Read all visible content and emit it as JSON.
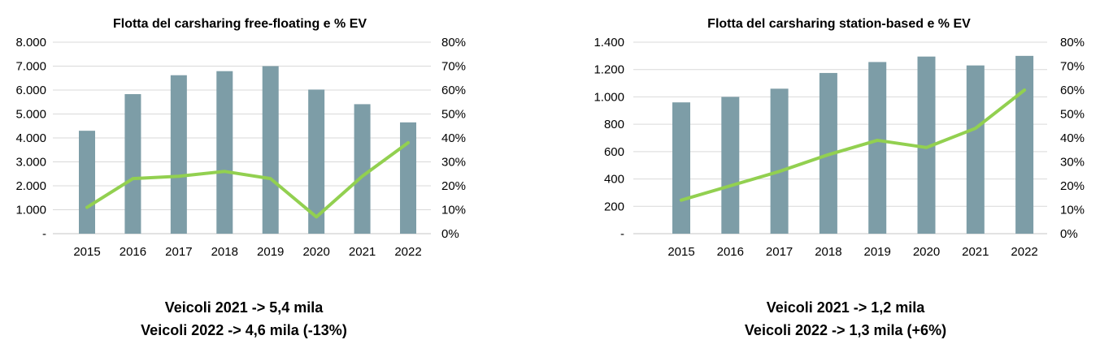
{
  "colors": {
    "bar": "#7D9DA7",
    "line": "#92D050",
    "grid": "#D9D9D9",
    "baseline": "#C6C6C6",
    "text": "#000000",
    "background": "#FFFFFF"
  },
  "chart_data": [
    {
      "type": "bar",
      "combo": "bar+line",
      "title": "Flotta del carsharing free-floating e % EV",
      "categories": [
        "2015",
        "2016",
        "2017",
        "2018",
        "2019",
        "2020",
        "2021",
        "2022"
      ],
      "series": [
        {
          "name": "Veicoli",
          "kind": "bar",
          "axis": "left",
          "values": [
            4300,
            5830,
            6620,
            6790,
            7000,
            6020,
            5410,
            4650
          ]
        },
        {
          "name": "% EV",
          "kind": "line",
          "axis": "right",
          "values": [
            11,
            23,
            24,
            26,
            23,
            7,
            24,
            38
          ]
        }
      ],
      "left_axis": {
        "min": 0,
        "max": 8000,
        "ticks": [
          "8.000",
          "7.000",
          "6.000",
          "5.000",
          "4.000",
          "3.000",
          "2.000",
          "1.000",
          "-"
        ]
      },
      "right_axis": {
        "min": 0,
        "max": 80,
        "ticks": [
          "80%",
          "70%",
          "60%",
          "50%",
          "40%",
          "30%",
          "20%",
          "10%",
          "0%"
        ]
      },
      "grid": true,
      "legend": "none",
      "caption": {
        "line1": "Veicoli 2021 -> 5,4 mila",
        "line2": "Veicoli 2022 -> 4,6 mila (-13%)"
      }
    },
    {
      "type": "bar",
      "combo": "bar+line",
      "title": "Flotta del carsharing station-based e % EV",
      "categories": [
        "2015",
        "2016",
        "2017",
        "2018",
        "2019",
        "2020",
        "2021",
        "2022"
      ],
      "series": [
        {
          "name": "Veicoli",
          "kind": "bar",
          "axis": "left",
          "values": [
            960,
            1000,
            1060,
            1175,
            1255,
            1295,
            1230,
            1300
          ]
        },
        {
          "name": "% EV",
          "kind": "line",
          "axis": "right",
          "values": [
            14,
            20,
            26,
            33,
            39,
            36,
            44,
            60
          ]
        }
      ],
      "left_axis": {
        "min": 0,
        "max": 1400,
        "ticks": [
          "1.400",
          "1.200",
          "1.000",
          "800",
          "600",
          "400",
          "200",
          "-"
        ]
      },
      "right_axis": {
        "min": 0,
        "max": 80,
        "ticks": [
          "80%",
          "70%",
          "60%",
          "50%",
          "40%",
          "30%",
          "20%",
          "10%",
          "0%"
        ]
      },
      "grid": true,
      "legend": "none",
      "caption": {
        "line1": "Veicoli 2021 -> 1,2 mila",
        "line2": "Veicoli 2022 -> 1,3 mila (+6%)"
      }
    }
  ]
}
